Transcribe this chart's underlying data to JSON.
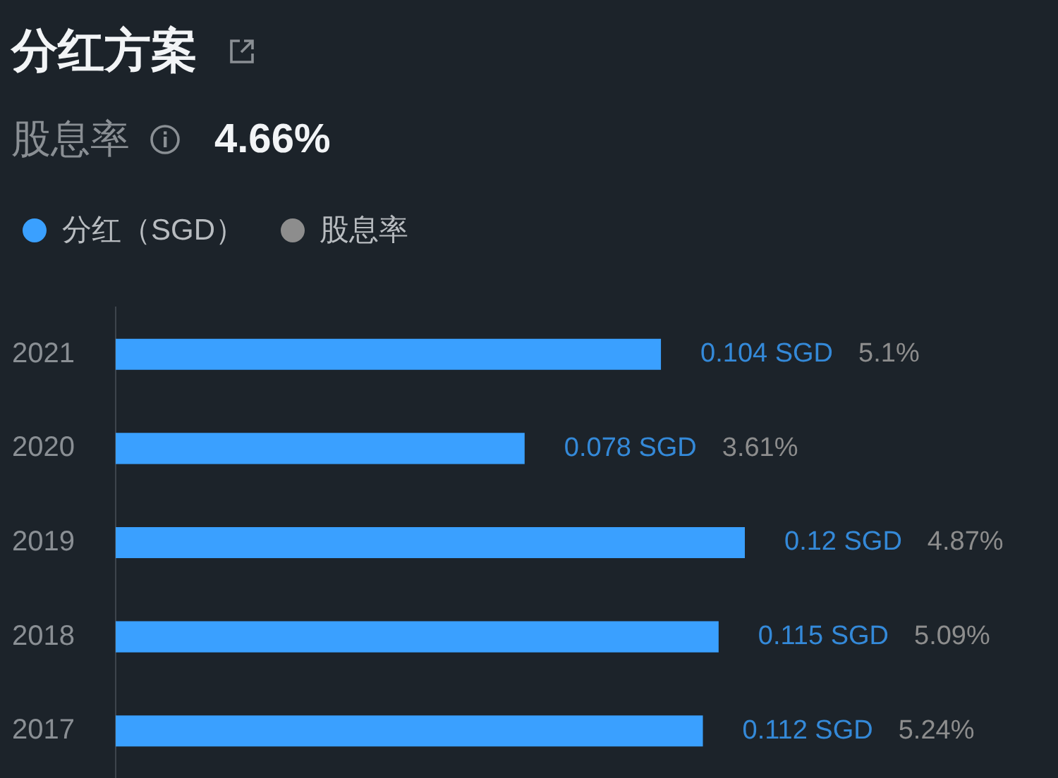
{
  "chart_data": {
    "type": "bar",
    "orientation": "horizontal",
    "title": "分红方案",
    "subtitle": "股息率",
    "annotations": [
      "4.66%"
    ],
    "categories": [
      "2021",
      "2020",
      "2019",
      "2018",
      "2017"
    ],
    "series": [
      {
        "name": "分红（SGD）",
        "color": "#3aa0ff",
        "values": [
          0.104,
          0.078,
          0.12,
          0.115,
          0.112
        ],
        "value_labels": [
          "0.104 SGD",
          "0.078 SGD",
          "0.12 SGD",
          "0.115 SGD",
          "0.112 SGD"
        ]
      },
      {
        "name": "股息率",
        "color": "#8d8d8d",
        "values": [
          null,
          null,
          null,
          null,
          null
        ],
        "value_labels": [
          "5.1%",
          "3.61%",
          "4.87%",
          "5.09%",
          "5.24%"
        ]
      }
    ],
    "legend": "top left",
    "grid": false,
    "tick_labels": "y"
  }
}
